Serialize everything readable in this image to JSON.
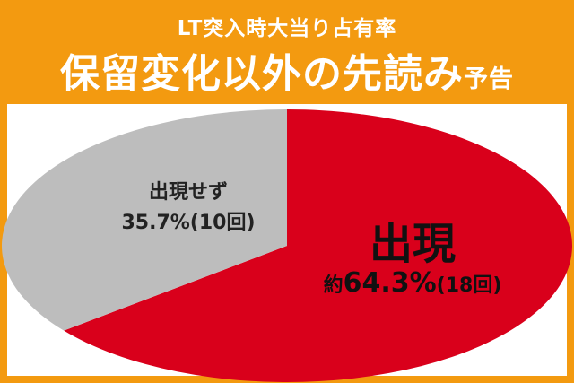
{
  "header": {
    "subtitle": "LT突入時大当り占有率",
    "title": "保留変化以外の先読み",
    "title_suffix": "予告"
  },
  "colors": {
    "header_bg": "#f39a10",
    "appeared": "#d9001b",
    "not_appeared": "#bdbdbd"
  },
  "labels": {
    "not_appeared_name": "出現せず",
    "not_appeared_value": "35.7%(10回)",
    "appeared_name": "出現",
    "appeared_prefix": "約",
    "appeared_pct": "64.3%",
    "appeared_count": "(18回)"
  },
  "chart_data": {
    "type": "pie",
    "categories": [
      "出現",
      "出現せず"
    ],
    "values": [
      64.3,
      35.7
    ],
    "counts": [
      18,
      10
    ],
    "title": "保留変化以外の先読み予告"
  }
}
